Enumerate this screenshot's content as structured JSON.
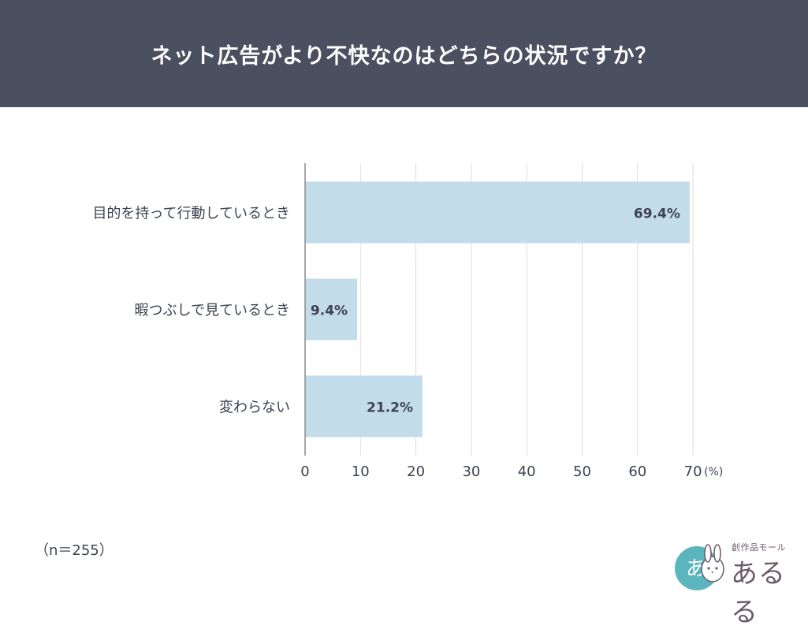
{
  "header": {
    "title": "ネット広告がより不快なのはどちらの状況ですか？"
  },
  "chart_data": {
    "type": "bar",
    "orientation": "horizontal",
    "categories": [
      "目的を持って行動しているとき",
      "暇つぶしで見ているとき",
      "変わらない"
    ],
    "values": [
      69.4,
      9.4,
      21.2
    ],
    "value_labels": [
      "69.4%",
      "9.4%",
      "21.2%"
    ],
    "xlim": [
      0,
      70
    ],
    "xticks": [
      0,
      10,
      20,
      30,
      40,
      50,
      60,
      70
    ],
    "x_unit": "(%)",
    "grid": true,
    "bar_color": "#c2dcea"
  },
  "footnote": "（n＝255）",
  "logo": {
    "tagline": "創作品モール",
    "name": "あるる",
    "badge": "あ"
  }
}
